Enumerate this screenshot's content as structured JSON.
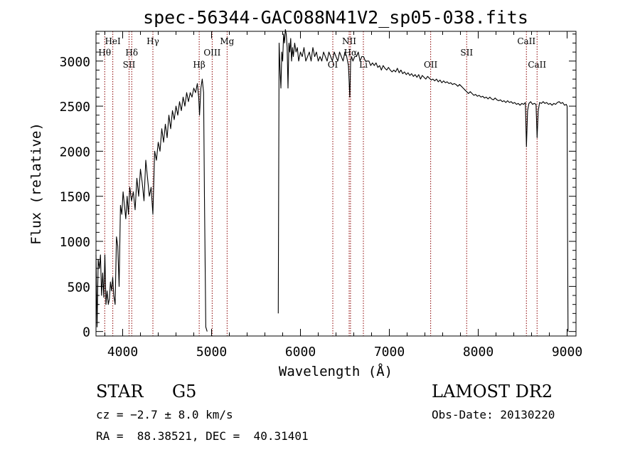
{
  "chart_data": {
    "type": "line",
    "title": "spec-56344-GAC088N41V2_sp05-038.fits",
    "xlabel": "Wavelength (Å)",
    "ylabel": "Flux (relative)",
    "xlim": [
      3700,
      9100
    ],
    "ylim": [
      -50,
      3330
    ],
    "x_ticks": [
      4000,
      5000,
      6000,
      7000,
      8000,
      9000
    ],
    "y_ticks": [
      0,
      500,
      1000,
      1500,
      2000,
      2500,
      3000
    ],
    "grid": false,
    "line_color": "#000000",
    "marker_color": "#8b0000",
    "spectral_lines": [
      {
        "label": "Hθ",
        "wavelength": 3798,
        "row": "lower"
      },
      {
        "label": "HeI",
        "wavelength": 3889,
        "row": "upper"
      },
      {
        "label": "SII",
        "wavelength": 4072,
        "row": "third"
      },
      {
        "label": "Hδ",
        "wavelength": 4102,
        "row": "lower"
      },
      {
        "label": "Hγ",
        "wavelength": 4340,
        "row": "upper"
      },
      {
        "label": "Hβ",
        "wavelength": 4861,
        "row": "third"
      },
      {
        "label": "OIII",
        "wavelength": 5007,
        "row": "lower"
      },
      {
        "label": "Mg",
        "wavelength": 5175,
        "row": "upper"
      },
      {
        "label": "OI",
        "wavelength": 6364,
        "row": "third"
      },
      {
        "label": "NII",
        "wavelength": 6548,
        "row": "upper"
      },
      {
        "label": "Hα",
        "wavelength": 6563,
        "row": "lower"
      },
      {
        "label": "Li",
        "wavelength": 6708,
        "row": "third"
      },
      {
        "label": "OII",
        "wavelength": 7465,
        "row": "third"
      },
      {
        "label": "SII",
        "wavelength": 7870,
        "row": "lower"
      },
      {
        "label": "CaII",
        "wavelength": 8542,
        "row": "upper"
      },
      {
        "label": "CaII",
        "wavelength": 8662,
        "row": "third"
      }
    ],
    "series": [
      {
        "segments": [
          {
            "x": [
              3700,
              3712,
              3725,
              3738,
              3750,
              3762,
              3775,
              3788,
              3800,
              3812,
              3825,
              3838,
              3850,
              3862,
              3875,
              3888,
              3900,
              3915,
              3930,
              3945,
              3960,
              3975,
              3990,
              4005,
              4020,
              4035,
              4050,
              4065,
              4080,
              4100,
              4120,
              4140,
              4160,
              4180,
              4200,
              4220,
              4240,
              4260,
              4280,
              4300,
              4320,
              4340,
              4360,
              4380,
              4400,
              4420,
              4440,
              4460,
              4480,
              4500,
              4520,
              4540,
              4560,
              4580,
              4600,
              4620,
              4640,
              4660,
              4680,
              4700,
              4720,
              4740,
              4760,
              4780,
              4800,
              4820,
              4840,
              4855,
              4865,
              4880,
              4895,
              4910,
              4920,
              4935,
              4950
            ],
            "y": [
              850,
              50,
              800,
              700,
              850,
              400,
              650,
              380,
              850,
              300,
              450,
              300,
              360,
              550,
              450,
              600,
              400,
              300,
              1050,
              950,
              500,
              1400,
              1300,
              1550,
              1400,
              1250,
              1500,
              1300,
              1600,
              1450,
              1550,
              1350,
              1700,
              1500,
              1800,
              1650,
              1450,
              1900,
              1700,
              1500,
              1600,
              1300,
              2000,
              1900,
              2100,
              2000,
              2250,
              2100,
              2300,
              2150,
              2400,
              2250,
              2450,
              2350,
              2500,
              2400,
              2550,
              2450,
              2600,
              2500,
              2650,
              2550,
              2650,
              2600,
              2700,
              2650,
              2750,
              2600,
              2400,
              2700,
              2800,
              2650,
              1500,
              50,
              0
            ]
          },
          {
            "x": [
              5750,
              5760,
              5770,
              5780,
              5790,
              5800,
              5810,
              5820,
              5830,
              5840,
              5850,
              5860,
              5870,
              5880,
              5890,
              5900,
              5910,
              5920,
              5935,
              5950,
              5965,
              5980,
              6000,
              6020,
              6040,
              6060,
              6080,
              6100,
              6120,
              6140,
              6160,
              6180,
              6200,
              6220,
              6240,
              6260,
              6280,
              6300,
              6320,
              6340,
              6360,
              6380,
              6400,
              6420,
              6440,
              6460,
              6480,
              6500,
              6520,
              6540,
              6555,
              6565,
              6575,
              6590,
              6610,
              6630,
              6650,
              6670,
              6690,
              6710,
              6730,
              6750,
              6770,
              6790,
              6810,
              6830,
              6850,
              6870,
              6890,
              6910,
              6930,
              6950,
              6970,
              6990,
              7010,
              7030,
              7050,
              7070,
              7090,
              7110,
              7130,
              7150,
              7170,
              7190,
              7210,
              7230,
              7250,
              7270,
              7290,
              7310,
              7330,
              7350,
              7370,
              7390,
              7410,
              7430,
              7450,
              7470,
              7490,
              7510,
              7530,
              7550,
              7570,
              7590,
              7610,
              7630,
              7650,
              7670,
              7690,
              7710,
              7730,
              7750,
              7770,
              7790,
              7810,
              7830,
              7850,
              7870,
              7890,
              7910,
              7930,
              7950,
              7970,
              7990,
              8010,
              8030,
              8050,
              8070,
              8090,
              8110,
              8130,
              8150,
              8170,
              8190,
              8210,
              8230,
              8250,
              8270,
              8290,
              8310,
              8330,
              8350,
              8370,
              8390,
              8410,
              8430,
              8450,
              8470,
              8490,
              8510,
              8530,
              8542,
              8555,
              8570,
              8590,
              8610,
              8630,
              8650,
              8662,
              8675,
              8690,
              8710,
              8730,
              8750,
              8770,
              8790,
              8810,
              8830,
              8850,
              8870,
              8890,
              8910,
              8930,
              8950,
              8970,
              8990,
              9000,
              9005,
              9010
            ],
            "y": [
              200,
              3200,
              2900,
              2700,
              3100,
              3000,
              3300,
              3200,
              3350,
              3300,
              3150,
              2700,
              3200,
              3100,
              3250,
              3000,
              3150,
              3050,
              3200,
              3100,
              3150,
              3000,
              3100,
              3050,
              3150,
              3000,
              3050,
              3100,
              3000,
              3150,
              3050,
              3100,
              3000,
              3050,
              3000,
              3100,
              3050,
              3000,
              3100,
              3050,
              3000,
              3100,
              3050,
              3000,
              3100,
              3050,
              3000,
              3100,
              3050,
              2950,
              2600,
              3000,
              3050,
              3000,
              3050,
              3050,
              3100,
              3000,
              3050,
              3050,
              3000,
              3000,
              3000,
              2950,
              2980,
              2950,
              2980,
              2930,
              2950,
              2900,
              2950,
              2920,
              2900,
              2930,
              2900,
              2880,
              2900,
              2880,
              2920,
              2870,
              2900,
              2860,
              2880,
              2850,
              2870,
              2840,
              2860,
              2830,
              2850,
              2820,
              2850,
              2800,
              2840,
              2820,
              2800,
              2830,
              2810,
              2790,
              2800,
              2780,
              2800,
              2770,
              2790,
              2760,
              2780,
              2760,
              2770,
              2750,
              2760,
              2740,
              2750,
              2740,
              2720,
              2740,
              2720,
              2700,
              2680,
              2660,
              2640,
              2660,
              2640,
              2620,
              2630,
              2610,
              2620,
              2600,
              2610,
              2590,
              2600,
              2580,
              2600,
              2580,
              2570,
              2590,
              2570,
              2560,
              2570,
              2550,
              2560,
              2540,
              2560,
              2540,
              2550,
              2530,
              2540,
              2520,
              2530,
              2510,
              2530,
              2520,
              2540,
              2050,
              2450,
              2530,
              2550,
              2520,
              2530,
              2520,
              2150,
              2450,
              2540,
              2530,
              2550,
              2530,
              2540,
              2520,
              2530,
              2510,
              2530,
              2520,
              2540,
              2550,
              2530,
              2540,
              2510,
              2520,
              2500,
              1150,
              0
            ]
          }
        ]
      }
    ]
  },
  "info": {
    "object_class": "STAR",
    "subclass": "G5",
    "survey": "LAMOST DR2",
    "cz": "cz = −2.7 ± 8.0 km/s",
    "obs_date": "Obs-Date: 20130220",
    "coords": "RA =  88.38521, DEC =  40.31401"
  }
}
